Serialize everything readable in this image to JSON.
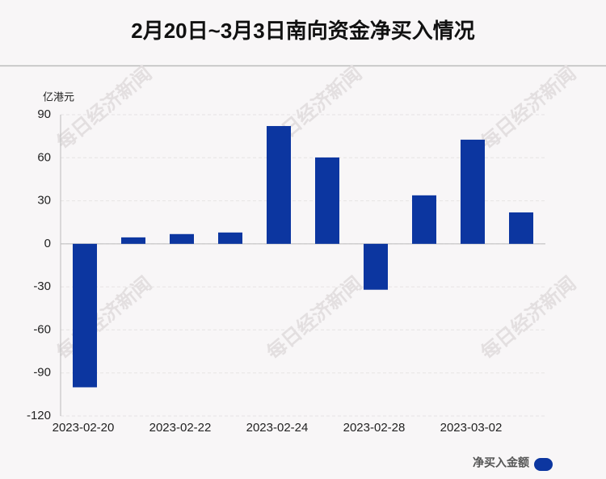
{
  "chart_data": {
    "type": "bar",
    "title": "2月20日~3月3日南向资金净买入情况",
    "y_unit": "亿港元",
    "watermark": "每日经济新闻",
    "categories": [
      "2023-02-20",
      null,
      "2023-02-22",
      null,
      "2023-02-24",
      null,
      "2023-02-28",
      null,
      "2023-03-02",
      null
    ],
    "series": [
      {
        "name": "净买入金额",
        "color": "#0c36a0",
        "values": [
          -100,
          4.5,
          6.8,
          7.9,
          82.1,
          60.2,
          -32,
          33.8,
          72.6,
          21.9
        ]
      }
    ],
    "ylim": [
      -120,
      90
    ],
    "yticks": [
      -120,
      -90,
      -60,
      -30,
      0,
      30,
      60,
      90
    ],
    "grid": true
  }
}
